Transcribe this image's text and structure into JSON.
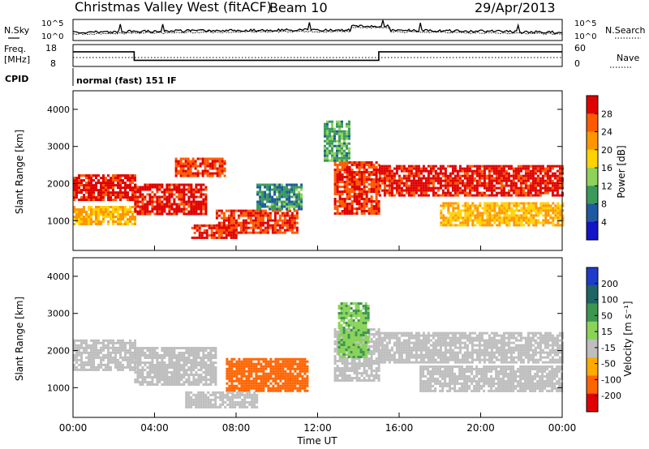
{
  "header": {
    "title": "Christmas Valley West (fitACF)",
    "beam": "Beam 10",
    "date": "29/Apr/2013"
  },
  "noise_panel": {
    "left_label": "N.Sky",
    "right_label": "N.Search",
    "left_ticks": [
      "10^5",
      "10^0"
    ],
    "right_ticks": [
      "10^5",
      "10^0"
    ]
  },
  "freq_panel": {
    "left_label_line1": "Freq.",
    "left_label_line2": "[MHz]",
    "right_label": "Nave",
    "left_ticks": [
      "18",
      "8"
    ],
    "right_ticks": [
      "60",
      "0"
    ]
  },
  "cpid": {
    "label": "CPID",
    "value": "normal (fast) 151 IF"
  },
  "chart_data": [
    {
      "type": "line",
      "title": "",
      "xlabel": "",
      "ylabel": "Freq. [MHz]",
      "series": [
        {
          "name": "Freq.",
          "x": [
            "00:00",
            "03:00",
            "03:00",
            "15:00",
            "15:00",
            "24:00"
          ],
          "values": [
            14.7,
            14.7,
            10.8,
            10.8,
            14.7,
            14.7
          ]
        }
      ]
    },
    {
      "type": "heatmap",
      "title": "",
      "xlabel": "",
      "ylabel": "Slant Range [km]",
      "yticks": [
        1000,
        2000,
        3000,
        4000
      ],
      "ylim": [
        200,
        4500
      ],
      "colorbar": {
        "label": "Power [dB]",
        "ticks": [
          "28",
          "24",
          "20",
          "16",
          "12",
          "8",
          "4"
        ],
        "colors": [
          "#e00000",
          "#ff5a00",
          "#ff9600",
          "#ffd200",
          "#8fd15a",
          "#3a9a5a",
          "#1e5aa0",
          "#1414c8"
        ]
      },
      "regions": [
        {
          "t0": 0.0,
          "t1": 3.0,
          "r0": 1550,
          "r1": 2250,
          "level": 28
        },
        {
          "t0": 0.0,
          "t1": 3.0,
          "r0": 900,
          "r1": 1400,
          "level": 18
        },
        {
          "t0": 3.0,
          "t1": 6.5,
          "r0": 1150,
          "r1": 2000,
          "level": 28
        },
        {
          "t0": 5.0,
          "t1": 7.5,
          "r0": 2200,
          "r1": 2700,
          "level": 26
        },
        {
          "t0": 5.8,
          "t1": 8.0,
          "r0": 550,
          "r1": 900,
          "level": 28
        },
        {
          "t0": 7.0,
          "t1": 11.0,
          "r0": 700,
          "r1": 1300,
          "level": 26
        },
        {
          "t0": 9.0,
          "t1": 11.2,
          "r0": 1300,
          "r1": 2000,
          "level": 8
        },
        {
          "t0": 12.8,
          "t1": 15.0,
          "r0": 1200,
          "r1": 2600,
          "level": 26
        },
        {
          "t0": 12.3,
          "t1": 13.6,
          "r0": 2600,
          "r1": 3700,
          "level": 10
        },
        {
          "t0": 15.0,
          "t1": 24.0,
          "r0": 1700,
          "r1": 2500,
          "level": 28
        },
        {
          "t0": 18.0,
          "t1": 24.0,
          "r0": 900,
          "r1": 1500,
          "level": 18
        }
      ]
    },
    {
      "type": "heatmap",
      "title": "",
      "xlabel": "Time UT",
      "ylabel": "Slant Range [km]",
      "xticks": [
        "00:00",
        "04:00",
        "08:00",
        "12:00",
        "16:00",
        "20:00",
        "00:00"
      ],
      "yticks": [
        1000,
        2000,
        3000,
        4000
      ],
      "ylim": [
        200,
        4500
      ],
      "colorbar": {
        "label": "Velocity [m s⁻¹]",
        "ticks": [
          "200",
          "100",
          "50",
          "15",
          "-15",
          "-50",
          "-100",
          "-200"
        ],
        "colors": [
          "#1e3cc8",
          "#1e6464",
          "#3c9650",
          "#8ad25a",
          "#bebebe",
          "#ffaa00",
          "#ff6400",
          "#e00000"
        ]
      },
      "regions": [
        {
          "t0": 0.0,
          "t1": 3.0,
          "r0": 1500,
          "r1": 2300,
          "level": 0
        },
        {
          "t0": 3.0,
          "t1": 7.0,
          "r0": 1100,
          "r1": 2100,
          "level": 0
        },
        {
          "t0": 7.5,
          "t1": 11.5,
          "r0": 900,
          "r1": 1800,
          "level": -60
        },
        {
          "t0": 5.5,
          "t1": 9.0,
          "r0": 500,
          "r1": 900,
          "level": 0
        },
        {
          "t0": 12.8,
          "t1": 15.0,
          "r0": 1200,
          "r1": 2600,
          "level": 0
        },
        {
          "t0": 13.0,
          "t1": 14.5,
          "r0": 1800,
          "r1": 3300,
          "level": 30
        },
        {
          "t0": 15.0,
          "t1": 24.0,
          "r0": 1700,
          "r1": 2500,
          "level": 0
        },
        {
          "t0": 17.0,
          "t1": 24.0,
          "r0": 900,
          "r1": 1600,
          "level": 0
        }
      ]
    }
  ]
}
